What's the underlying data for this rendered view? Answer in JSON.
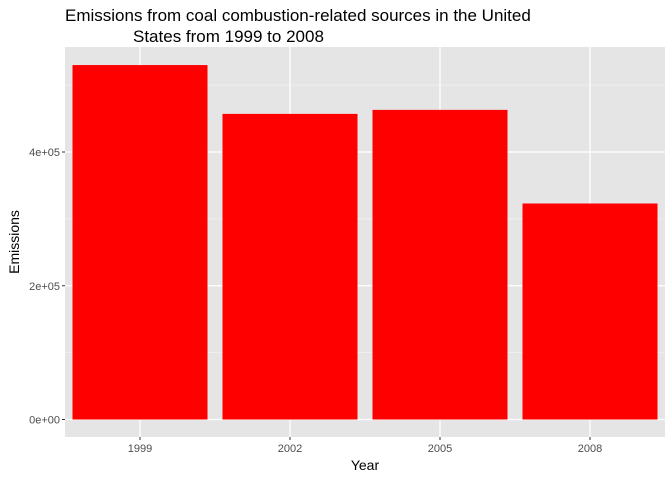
{
  "chart_data": {
    "type": "bar",
    "title_line1": "Emissions from coal combustion-related sources in the United",
    "title_line2": "States from 1999 to 2008",
    "xlabel": "Year",
    "ylabel": "Emissions",
    "categories": [
      "1999",
      "2002",
      "2005",
      "2008"
    ],
    "values": [
      530000,
      457000,
      463000,
      323000
    ],
    "ylim": [
      0,
      560000
    ],
    "yticks": [
      0,
      200000,
      400000
    ],
    "ytick_labels": [
      "0e+00",
      "2e+05",
      "4e+05"
    ],
    "bar_color": "#ff0000",
    "panel_color": "#e5e5e5",
    "grid": true,
    "legend": "none"
  }
}
